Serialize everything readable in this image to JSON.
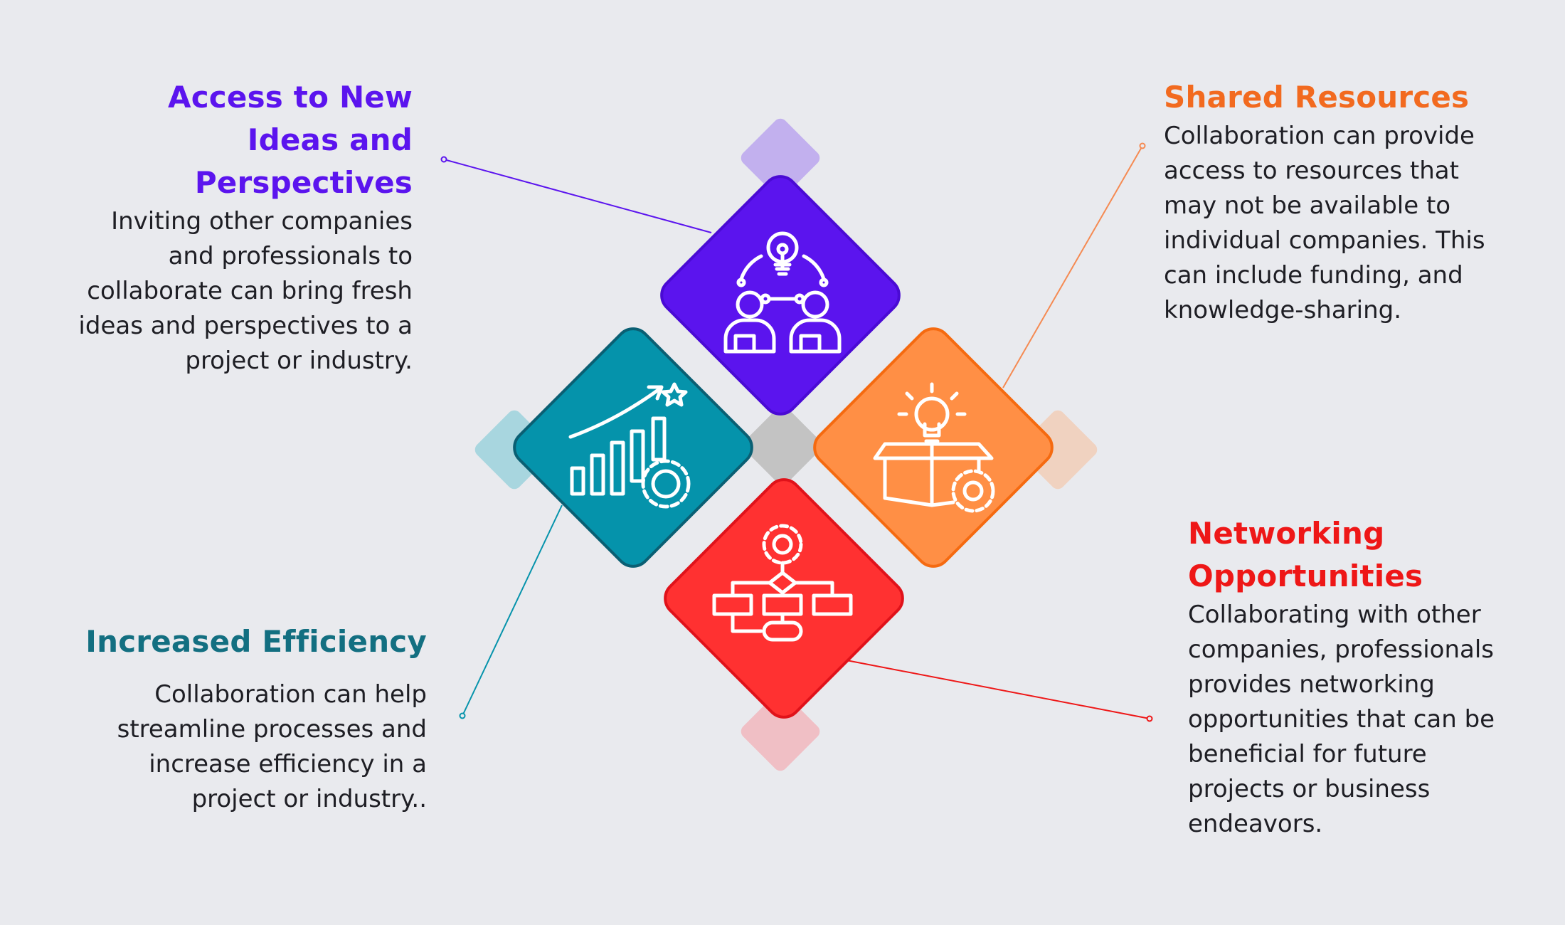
{
  "sections": {
    "top_left": {
      "title": "Access to New Ideas and Perspectives",
      "title_lines": [
        "Access to New",
        "Ideas and",
        "Perspectives"
      ],
      "description_lines": [
        "Inviting other companies",
        "and professionals to",
        "collaborate can bring fresh",
        "ideas and perspectives to a",
        "project or industry."
      ],
      "color": "#5b14ee",
      "icon": "teamwork-idea-icon"
    },
    "top_right": {
      "title": "Shared Resources",
      "title_lines": [
        "Shared Resources"
      ],
      "description_lines": [
        "Collaboration can provide",
        "access to resources that",
        "may not be available to",
        "individual companies. This",
        "can include funding, and",
        "knowledge-sharing."
      ],
      "color": "#f26a1f",
      "icon": "idea-box-gear-icon"
    },
    "bottom_left": {
      "title": "Increased Efficiency",
      "title_lines": [
        "Increased Efficiency"
      ],
      "description_lines": [
        "Collaboration can help",
        "streamline processes and",
        "increase efficiency in a",
        "project or industry.."
      ],
      "color": "#136f81",
      "icon": "growth-chart-gear-icon"
    },
    "bottom_right": {
      "title": "Networking Opportunities",
      "title_lines": [
        "Networking",
        "Opportunities"
      ],
      "description_lines": [
        "Collaborating with other",
        "companies, professionals",
        "provides networking",
        "opportunities that can be",
        "beneficial for future",
        "projects or business",
        "endeavors."
      ],
      "color": "#ee1717",
      "icon": "flowchart-gear-icon"
    }
  },
  "palette": {
    "background": "#e9eaee",
    "purple": "#5b14ee",
    "orange": "#ff8f45",
    "teal": "#0593ab",
    "red": "#ff3131",
    "center": "#c3c3c3"
  }
}
